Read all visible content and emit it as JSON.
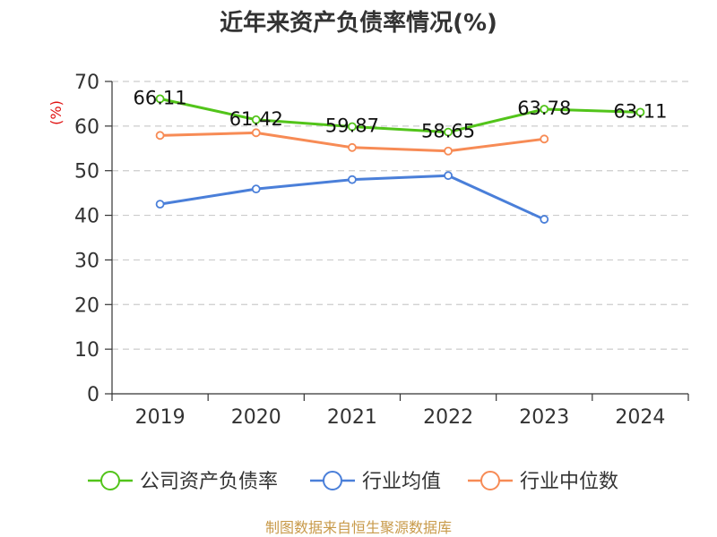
{
  "chart_data": {
    "type": "line",
    "title": "近年来资产负债率情况(%)",
    "ylabel": "(%)",
    "xlabel": "",
    "categories": [
      "2019",
      "2020",
      "2021",
      "2022",
      "2023",
      "2024"
    ],
    "ylim": [
      0,
      70
    ],
    "yticks": [
      0,
      10,
      20,
      30,
      40,
      50,
      60,
      70
    ],
    "grid": true,
    "legend_position": "bottom",
    "series": [
      {
        "name": "公司资产负债率",
        "color": "#52c41a",
        "values": [
          66.11,
          61.42,
          59.87,
          58.65,
          63.78,
          63.11
        ],
        "labels": [
          "66.11",
          "61.42",
          "59.87",
          "58.65",
          "63.78",
          "63.11"
        ]
      },
      {
        "name": "行业均值",
        "color": "#4a7fd9",
        "values": [
          42.5,
          45.9,
          48.0,
          48.9,
          39.1,
          null
        ]
      },
      {
        "name": "行业中位数",
        "color": "#f78b55",
        "values": [
          57.9,
          58.5,
          55.2,
          54.4,
          57.1,
          null
        ]
      }
    ]
  },
  "footer": {
    "source": "制图数据来自恒生聚源数据库"
  }
}
